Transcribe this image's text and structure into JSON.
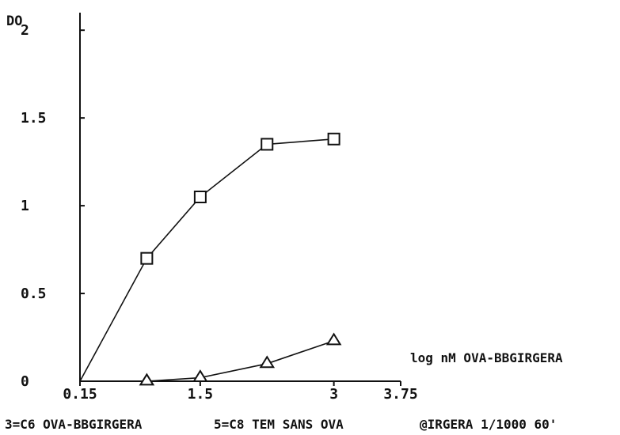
{
  "chart_data": {
    "type": "line",
    "ylabel": "DO",
    "xlabel": "log nM OVA-BBGIRGERA",
    "xlim": [
      0.15,
      3.75
    ],
    "ylim": [
      0,
      2.1
    ],
    "x_ticks": [
      {
        "value": 0.15,
        "label": "0.15"
      },
      {
        "value": 1.5,
        "label": "1.5"
      },
      {
        "value": 3,
        "label": "3"
      },
      {
        "value": 3.75,
        "label": "3.75"
      }
    ],
    "y_ticks": [
      {
        "value": 0,
        "label": "0"
      },
      {
        "value": 0.5,
        "label": "0.5"
      },
      {
        "value": 1,
        "label": "1"
      },
      {
        "value": 1.5,
        "label": "1.5"
      },
      {
        "value": 2,
        "label": "2"
      }
    ],
    "series": [
      {
        "marker": "square",
        "x": [
          0.15,
          0.9,
          1.5,
          2.25,
          3.0
        ],
        "y": [
          0.0,
          0.7,
          1.05,
          1.35,
          1.38
        ]
      },
      {
        "marker": "triangle",
        "x": [
          0.9,
          1.5,
          2.25,
          3.0
        ],
        "y": [
          0.0,
          0.02,
          0.1,
          0.23
        ]
      }
    ],
    "grid": false,
    "legend": "none",
    "line_color": "#111111",
    "footer": {
      "left": "3=C6 OVA-BBGIRGERA",
      "middle": "5=C8 TEM SANS OVA",
      "right": "@IRGERA 1/1000 60'"
    }
  }
}
